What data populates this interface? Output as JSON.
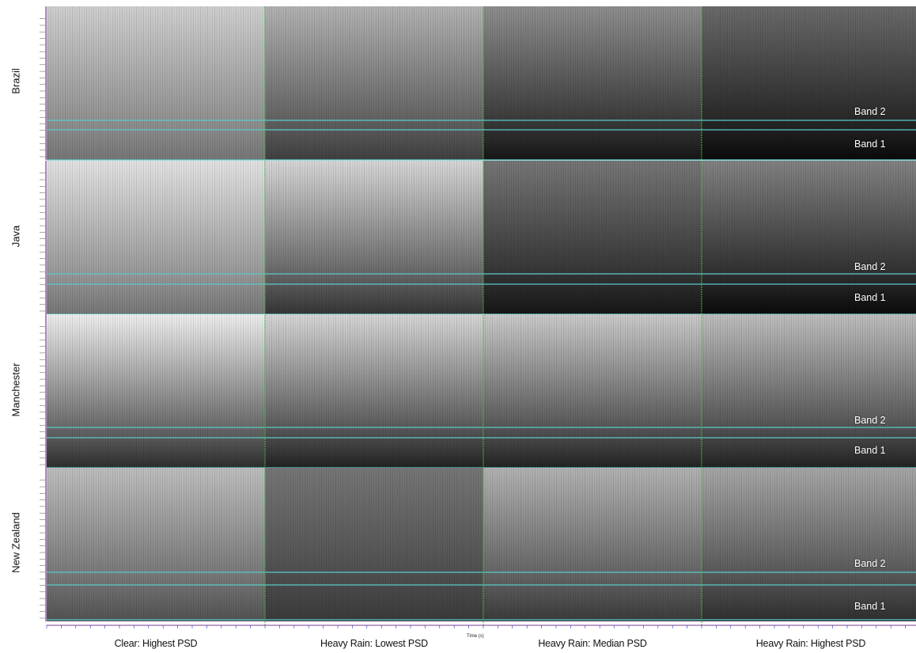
{
  "figure": {
    "rows": [
      "Brazil",
      "Java",
      "Manchester",
      "New Zealand"
    ],
    "columns": [
      "Clear: Highest PSD",
      "Heavy Rain: Lowest PSD",
      "Heavy Rain: Median PSD",
      "Heavy Rain: Highest PSD"
    ],
    "band_labels": {
      "band2": "Band 2",
      "band1": "Band 1"
    },
    "x_axis_title": "Time (s)",
    "colors": {
      "band_line": "#5ac8c8",
      "divider": "#3cc83c",
      "axis_line": "#7a3c9a",
      "axis_text": "#2233cc"
    }
  }
}
